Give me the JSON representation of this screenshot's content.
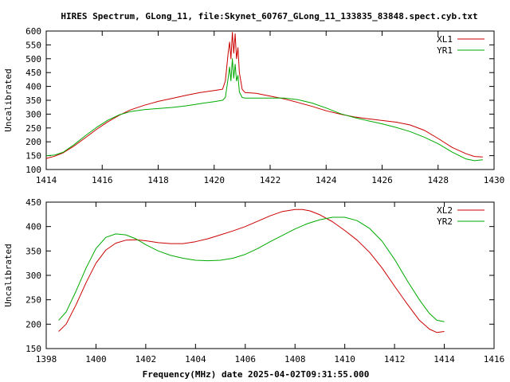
{
  "title": "HIRES Spectrum, GLong_11, file:Skynet_60767_GLong_11_133835_83848.spect.cyb.txt",
  "chart_data": [
    {
      "type": "line",
      "xlabel": "",
      "ylabel": "Uncalibrated",
      "xlim": [
        1414,
        1430
      ],
      "ylim": [
        100,
        600
      ],
      "xticks": [
        "1414",
        "1416",
        "1418",
        "1420",
        "1422",
        "1424",
        "1426",
        "1428",
        "1430"
      ],
      "yticks": [
        "100",
        "150",
        "200",
        "250",
        "300",
        "350",
        "400",
        "450",
        "500",
        "550",
        "600"
      ],
      "legend_position": "top-right",
      "series": [
        {
          "name": "XL1",
          "color": "#cc0000",
          "x": [
            1414.0,
            1414.3,
            1414.6,
            1415.0,
            1415.4,
            1415.8,
            1416.2,
            1416.6,
            1417.0,
            1417.5,
            1418.0,
            1418.5,
            1419.0,
            1419.5,
            1420.0,
            1420.3,
            1420.4,
            1420.5,
            1420.55,
            1420.6,
            1420.65,
            1420.7,
            1420.75,
            1420.8,
            1420.85,
            1420.9,
            1421.0,
            1421.1,
            1421.5,
            1422.0,
            1422.5,
            1423.0,
            1423.5,
            1424.0,
            1424.5,
            1425.0,
            1425.5,
            1426.0,
            1426.5,
            1427.0,
            1427.5,
            1428.0,
            1428.5,
            1429.0,
            1429.3,
            1429.6
          ],
          "y": [
            140,
            148,
            160,
            185,
            215,
            245,
            272,
            295,
            315,
            332,
            346,
            357,
            368,
            378,
            385,
            390,
            420,
            520,
            560,
            500,
            595,
            520,
            590,
            500,
            540,
            450,
            390,
            378,
            375,
            365,
            355,
            342,
            328,
            312,
            300,
            290,
            283,
            277,
            271,
            261,
            242,
            212,
            180,
            157,
            147,
            145
          ]
        },
        {
          "name": "YR1",
          "color": "#00aa00",
          "x": [
            1414.0,
            1414.3,
            1414.6,
            1415.0,
            1415.4,
            1415.8,
            1416.2,
            1416.6,
            1417.0,
            1417.5,
            1418.0,
            1418.5,
            1419.0,
            1419.5,
            1420.0,
            1420.3,
            1420.4,
            1420.5,
            1420.55,
            1420.6,
            1420.65,
            1420.7,
            1420.75,
            1420.8,
            1420.85,
            1420.9,
            1421.0,
            1421.1,
            1421.5,
            1422.0,
            1422.5,
            1423.0,
            1423.5,
            1424.0,
            1424.5,
            1425.0,
            1425.5,
            1426.0,
            1426.5,
            1427.0,
            1427.5,
            1428.0,
            1428.5,
            1429.0,
            1429.3,
            1429.6
          ],
          "y": [
            150,
            152,
            162,
            190,
            222,
            252,
            278,
            297,
            309,
            316,
            320,
            324,
            330,
            338,
            345,
            350,
            360,
            430,
            470,
            420,
            500,
            430,
            480,
            420,
            440,
            380,
            360,
            358,
            358,
            358,
            358,
            352,
            340,
            322,
            302,
            288,
            276,
            265,
            252,
            237,
            217,
            193,
            163,
            138,
            132,
            135
          ]
        }
      ]
    },
    {
      "type": "line",
      "xlabel": "Frequency(MHz) date 2025-04-02T09:31:55.000",
      "ylabel": "Uncalibrated",
      "xlim": [
        1398,
        1416
      ],
      "ylim": [
        150,
        450
      ],
      "xticks": [
        "1398",
        "1400",
        "1402",
        "1404",
        "1406",
        "1408",
        "1410",
        "1412",
        "1414",
        "1416"
      ],
      "yticks": [
        "150",
        "200",
        "250",
        "300",
        "350",
        "400",
        "450"
      ],
      "legend_position": "top-right",
      "series": [
        {
          "name": "XL2",
          "color": "#cc0000",
          "x": [
            1398.5,
            1398.8,
            1399.2,
            1399.6,
            1400.0,
            1400.4,
            1400.8,
            1401.2,
            1401.6,
            1402.0,
            1402.5,
            1403.0,
            1403.5,
            1404.0,
            1404.5,
            1405.0,
            1405.5,
            1406.0,
            1406.5,
            1407.0,
            1407.5,
            1408.0,
            1408.3,
            1408.6,
            1409.0,
            1409.5,
            1410.0,
            1410.5,
            1411.0,
            1411.5,
            1412.0,
            1412.5,
            1413.0,
            1413.4,
            1413.7,
            1414.0
          ],
          "y": [
            185,
            200,
            240,
            285,
            325,
            352,
            366,
            372,
            373,
            371,
            367,
            365,
            365,
            369,
            375,
            383,
            391,
            400,
            411,
            422,
            431,
            435,
            435,
            432,
            424,
            410,
            392,
            372,
            347,
            315,
            278,
            242,
            208,
            190,
            183,
            185
          ]
        },
        {
          "name": "YR2",
          "color": "#00aa00",
          "x": [
            1398.5,
            1398.8,
            1399.2,
            1399.6,
            1400.0,
            1400.4,
            1400.8,
            1401.2,
            1401.6,
            1402.0,
            1402.5,
            1403.0,
            1403.5,
            1404.0,
            1404.5,
            1405.0,
            1405.5,
            1406.0,
            1406.5,
            1407.0,
            1407.5,
            1408.0,
            1408.5,
            1409.0,
            1409.5,
            1410.0,
            1410.5,
            1411.0,
            1411.5,
            1412.0,
            1412.5,
            1413.0,
            1413.4,
            1413.7,
            1414.0
          ],
          "y": [
            208,
            225,
            268,
            315,
            355,
            378,
            385,
            383,
            375,
            363,
            350,
            341,
            335,
            331,
            330,
            331,
            335,
            343,
            355,
            369,
            382,
            395,
            406,
            414,
            419,
            419,
            412,
            396,
            370,
            333,
            290,
            250,
            222,
            208,
            205
          ]
        }
      ]
    }
  ]
}
